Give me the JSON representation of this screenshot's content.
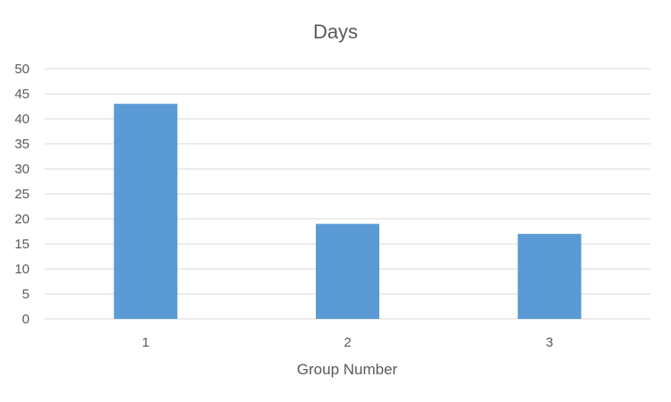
{
  "chart_data": {
    "type": "bar",
    "title": "Days",
    "xlabel": "Group Number",
    "ylabel": "",
    "categories": [
      "1",
      "2",
      "3"
    ],
    "values": [
      43,
      19,
      17
    ],
    "ylim": [
      0,
      50
    ],
    "yticks": [
      "0",
      "5",
      "10",
      "15",
      "20",
      "25",
      "30",
      "35",
      "40",
      "45",
      "50"
    ],
    "grid": true,
    "legend": "none",
    "bar_color": "#5b9bd5"
  }
}
